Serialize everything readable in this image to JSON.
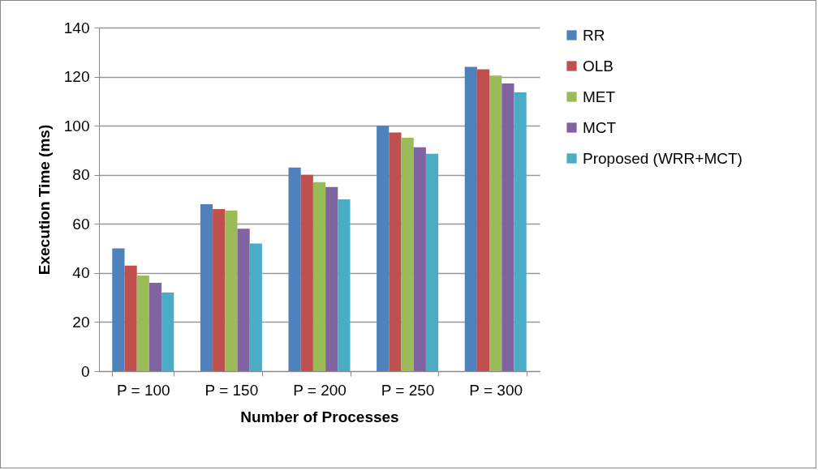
{
  "chart_data": {
    "type": "bar",
    "xlabel": "Number of Processes",
    "ylabel": "Execution Time (ms)",
    "categories": [
      "P = 100",
      "P = 150",
      "P = 200",
      "P = 250",
      "P = 300"
    ],
    "series": [
      {
        "name": "RR",
        "color": "#4f81bd",
        "values": [
          50,
          68,
          83,
          100,
          124
        ]
      },
      {
        "name": "OLB",
        "color": "#c0504d",
        "values": [
          43,
          66,
          80,
          97.2,
          123
        ]
      },
      {
        "name": "MET",
        "color": "#9bbb59",
        "values": [
          39,
          65.5,
          77,
          95.1,
          120.4
        ]
      },
      {
        "name": "MCT",
        "color": "#8064a2",
        "values": [
          36,
          58,
          75,
          91.2,
          117.2
        ]
      },
      {
        "name": "Proposed (WRR+MCT)",
        "color": "#4bacc6",
        "values": [
          32,
          52,
          70,
          88.6,
          113.6
        ]
      }
    ],
    "ylim": [
      0,
      140
    ],
    "yticks": [
      0,
      20,
      40,
      60,
      80,
      100,
      120,
      140
    ],
    "grid": "y",
    "legend": "right"
  }
}
